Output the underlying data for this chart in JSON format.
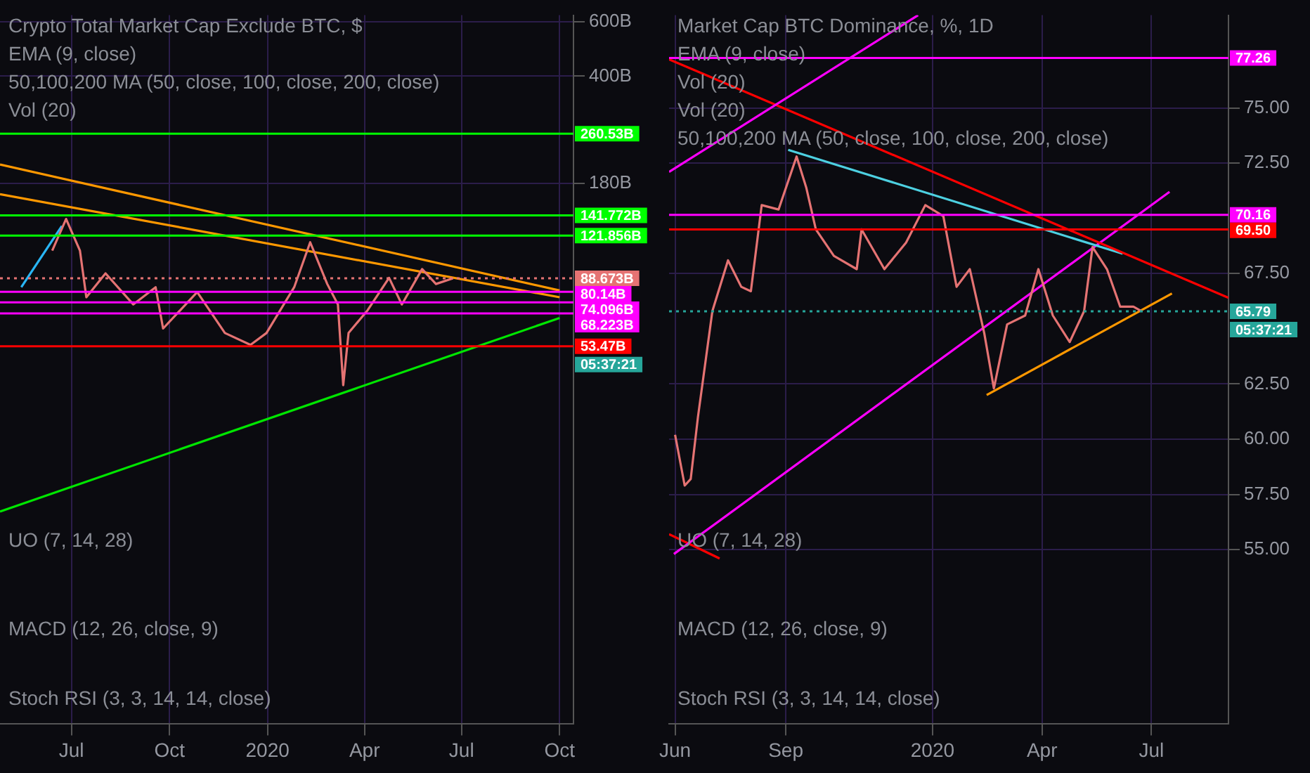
{
  "chart_data": [
    {
      "type": "line",
      "title": "Crypto Total Market Cap Exclude BTC, $",
      "log": true,
      "grid": true,
      "legend": false,
      "marker": "none",
      "xlim": [
        "2019-04-25",
        "2020-10-14"
      ],
      "xticks": [
        {
          "value": "2019-07-01",
          "label": "Jul"
        },
        {
          "value": "2019-10-01",
          "label": "Oct"
        },
        {
          "value": "2020-01-01",
          "label": "2020"
        },
        {
          "value": "2020-04-01",
          "label": "Apr"
        },
        {
          "value": "2020-07-01",
          "label": "Jul"
        },
        {
          "value": "2020-10-01",
          "label": "Oct"
        }
      ],
      "ylim": [
        3.2,
        630
      ],
      "yticks": [
        {
          "value": 600,
          "label": "600B"
        },
        {
          "value": 400,
          "label": "400B"
        },
        {
          "value": 180,
          "label": "180B"
        }
      ],
      "series": [
        {
          "color": "#e57373",
          "x": [
            "2019-06-13",
            "2019-06-26",
            "2019-07-09",
            "2019-07-15",
            "2019-08-02",
            "2019-08-28",
            "2019-09-18",
            "2019-09-25",
            "2019-10-27",
            "2019-11-22",
            "2019-12-16",
            "2019-12-31",
            "2020-01-26",
            "2020-02-10",
            "2020-02-26",
            "2020-03-07",
            "2020-03-12",
            "2020-03-17",
            "2020-04-04",
            "2020-04-24",
            "2020-05-06",
            "2020-05-25",
            "2020-06-07",
            "2020-06-23"
          ],
          "values": [
            109,
            138,
            109,
            77,
            92,
            73,
            83,
            61,
            80,
            59,
            54,
            59,
            83,
            116,
            85,
            73,
            40,
            59,
            70,
            89,
            73,
            95,
            85,
            88.7
          ]
        },
        {
          "color": "#ff9800",
          "x": [
            "2019-04-25",
            "2020-10-01"
          ],
          "values": [
            207,
            81
          ]
        },
        {
          "color": "#ff9800",
          "x": [
            "2019-04-25",
            "2020-10-01"
          ],
          "values": [
            166,
            77
          ]
        },
        {
          "color": "#00e600",
          "x": [
            "2019-04-25",
            "2020-10-01"
          ],
          "values": [
            15.6,
            66
          ]
        },
        {
          "color": "#29b6f6",
          "x": [
            "2019-05-15",
            "2019-06-22"
          ],
          "values": [
            83,
            131
          ]
        }
      ],
      "ref_lines": [
        {
          "axis": "y",
          "value": 260.53,
          "label": "260.53B",
          "color": "#00ff00"
        },
        {
          "axis": "y",
          "value": 141.772,
          "label": "141.772B",
          "color": "#00ff00"
        },
        {
          "axis": "y",
          "value": 121.856,
          "label": "121.856B",
          "color": "#00ff00"
        },
        {
          "axis": "y",
          "value": 88.673,
          "label": "88.673B",
          "color": "#e57373",
          "line_style": "dotted"
        },
        {
          "axis": "y",
          "value": 80.14,
          "label": "80.14B",
          "color": "#ff00ff"
        },
        {
          "axis": "y",
          "value": 74.096,
          "label": "74.096B",
          "color": "#ff00ff"
        },
        {
          "axis": "y",
          "value": 68.223,
          "label": "68.223B",
          "color": "#ff00ff"
        },
        {
          "axis": "y",
          "value": 53.47,
          "label": "53.47B",
          "color": "#ff0000"
        }
      ],
      "annotations": [
        "05:37:21",
        "EMA (9, close)",
        "50,100,200 MA (50, close, 100, close, 200, close)",
        "Vol (20)",
        "UO (7, 14, 28)",
        "MACD (12, 26, close, 9)",
        "Stoch RSI (3, 3, 14, 14, close)"
      ]
    },
    {
      "type": "line",
      "title": "Market Cap BTC Dominance, %, 1D",
      "grid": true,
      "legend": false,
      "marker": "none",
      "xlim": [
        "2019-05-27",
        "2020-09-03"
      ],
      "xticks": [
        {
          "value": "2019-06-01",
          "label": "Jun"
        },
        {
          "value": "2019-09-01",
          "label": "Sep"
        },
        {
          "value": "2020-01-01",
          "label": "2020"
        },
        {
          "value": "2020-04-01",
          "label": "Apr"
        },
        {
          "value": "2020-07-01",
          "label": "Jul"
        }
      ],
      "ylim": [
        47.1,
        79.2
      ],
      "yticks": [
        {
          "value": 55,
          "label": "55.00"
        },
        {
          "value": 57.5,
          "label": "57.50"
        },
        {
          "value": 60,
          "label": "60.00"
        },
        {
          "value": 62.5,
          "label": "62.50"
        },
        {
          "value": 67.5,
          "label": "67.50"
        },
        {
          "value": 72.5,
          "label": "72.50"
        },
        {
          "value": 75,
          "label": "75.00"
        }
      ],
      "series": [
        {
          "color": "#e57373",
          "x": [
            "2019-06-01",
            "2019-06-09",
            "2019-06-14",
            "2019-06-20",
            "2019-07-02",
            "2019-07-15",
            "2019-07-26",
            "2019-08-03",
            "2019-08-12",
            "2019-08-26",
            "2019-09-10",
            "2019-09-18",
            "2019-09-26",
            "2019-10-11",
            "2019-10-30",
            "2019-11-03",
            "2019-11-22",
            "2019-12-10",
            "2019-12-26",
            "2020-01-10",
            "2020-01-21",
            "2020-02-01",
            "2020-02-13",
            "2020-02-21",
            "2020-03-03",
            "2020-03-18",
            "2020-03-29",
            "2020-04-10",
            "2020-04-24",
            "2020-05-06",
            "2020-05-13",
            "2020-05-25",
            "2020-06-05",
            "2020-06-16",
            "2020-06-23"
          ],
          "values": [
            60.2,
            57.9,
            58.2,
            61,
            65.8,
            68.1,
            66.9,
            66.7,
            70.6,
            70.4,
            72.8,
            71.4,
            69.5,
            68.3,
            67.7,
            69.5,
            67.7,
            68.9,
            70.6,
            70.1,
            66.9,
            67.7,
            64.8,
            62.3,
            65.2,
            65.6,
            67.7,
            65.6,
            64.4,
            65.8,
            68.7,
            67.7,
            66,
            66,
            65.79
          ]
        },
        {
          "color": "#ff00ff",
          "x": [
            "2019-05-27",
            "2019-12-20"
          ],
          "values": [
            72.1,
            79.2
          ]
        },
        {
          "color": "#ff0000",
          "x": [
            "2019-05-27",
            "2020-09-03"
          ],
          "values": [
            77.2,
            66.4
          ]
        },
        {
          "color": "#4dd0e1",
          "x": [
            "2019-09-03",
            "2020-06-07"
          ],
          "values": [
            73.1,
            68.4
          ]
        },
        {
          "color": "#ff00ff",
          "x": [
            "2019-05-31",
            "2020-07-16"
          ],
          "values": [
            54.8,
            71.2
          ]
        },
        {
          "color": "#ff9800",
          "x": [
            "2020-02-15",
            "2020-07-18"
          ],
          "values": [
            62,
            66.6
          ]
        },
        {
          "color": "#ff0000",
          "x": [
            "2019-05-27",
            "2019-07-08"
          ],
          "values": [
            55.7,
            54.6
          ]
        }
      ],
      "ref_lines": [
        {
          "axis": "y",
          "value": 77.26,
          "label": "77.26",
          "color": "#ff00ff"
        },
        {
          "axis": "y",
          "value": 70.16,
          "label": "70.16",
          "color": "#ff00ff"
        },
        {
          "axis": "y",
          "value": 69.5,
          "label": "69.50",
          "color": "#ff0000"
        },
        {
          "axis": "y",
          "value": 65.79,
          "label": "65.79",
          "color": "#26a69a",
          "line_style": "dotted"
        }
      ],
      "annotations": [
        "05:37:21",
        "EMA (9, close)",
        "Vol (20)",
        "Vol (20)",
        "50,100,200 MA (50, close, 100, close, 200, close)",
        "UO (7, 14, 28)",
        "MACD (12, 26, close, 9)",
        "Stoch RSI (3, 3, 14, 14, close)"
      ]
    }
  ]
}
